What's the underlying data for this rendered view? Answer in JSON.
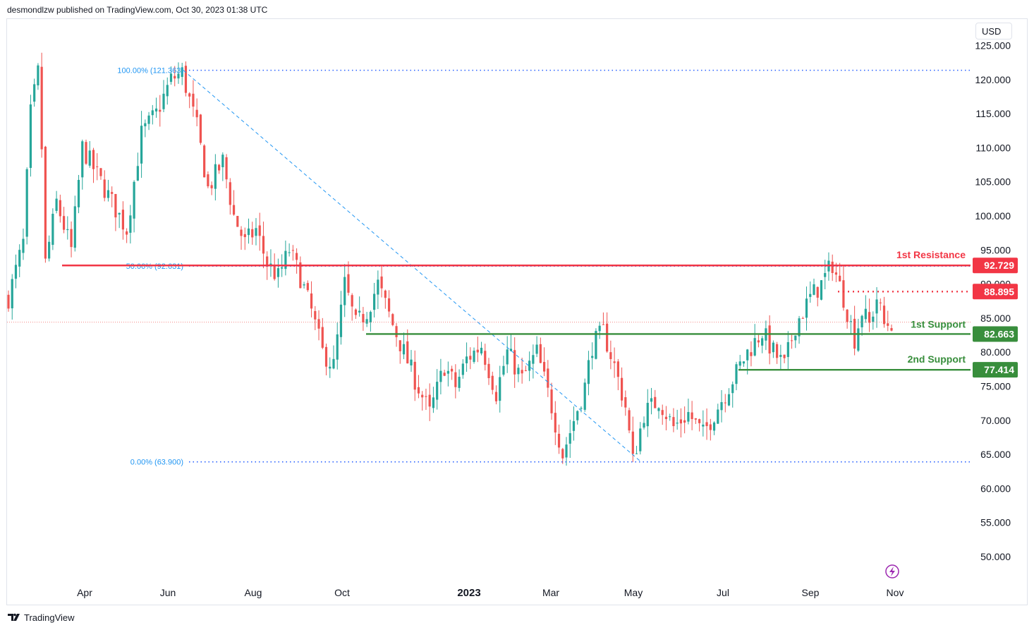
{
  "header": {
    "author_line": "desmondlzw published on TradingView.com, Oct 30, 2023 01:38 UTC"
  },
  "footer": {
    "brand": "TradingView"
  },
  "price_axis": {
    "currency": "USD"
  },
  "colors": {
    "up": "#26a69a",
    "down": "#ef5350",
    "resistance": "#f23645",
    "support": "#388e3c",
    "fib": "#2962ff",
    "fib_label": "#2196f3",
    "axis_text": "#131722"
  },
  "chart_data": {
    "type": "candlestick",
    "y_ticks": [
      "125.000",
      "120.000",
      "115.000",
      "110.000",
      "105.000",
      "100.000",
      "95.000",
      "90.000",
      "85.000",
      "80.000",
      "75.000",
      "70.000",
      "65.000",
      "60.000",
      "55.000",
      "50.000"
    ],
    "x_ticks": [
      "Apr",
      "Jun",
      "Aug",
      "Oct",
      "2023",
      "Mar",
      "May",
      "Jul",
      "Sep",
      "Nov"
    ],
    "ylim": [
      46.5,
      126.5
    ],
    "fib_levels": [
      {
        "label": "100.00% (121.363)",
        "value": 121.363
      },
      {
        "label": "50.00% (92.631)",
        "value": 92.631
      },
      {
        "label": "0.00% (63.900)",
        "value": 63.9
      }
    ],
    "levels": [
      {
        "name": "1st Resistance",
        "value": 92.729,
        "label": "92.729",
        "kind": "resistance"
      },
      {
        "name": "",
        "value": 88.895,
        "label": "88.895",
        "kind": "resistance-dotted"
      },
      {
        "name": "1st Support",
        "value": 82.663,
        "label": "82.663",
        "kind": "support"
      },
      {
        "name": "2nd Support",
        "value": 77.414,
        "label": "77.414",
        "kind": "support"
      }
    ],
    "last_price": 84.4,
    "trend": [
      {
        "t": 0,
        "v": 88
      },
      {
        "t": 2,
        "v": 92
      },
      {
        "t": 4,
        "v": 96
      },
      {
        "t": 6,
        "v": 115
      },
      {
        "t": 8,
        "v": 121
      },
      {
        "t": 9,
        "v": 110
      },
      {
        "t": 10,
        "v": 93
      },
      {
        "t": 13,
        "v": 102
      },
      {
        "t": 17,
        "v": 95
      },
      {
        "t": 20,
        "v": 110
      },
      {
        "t": 26,
        "v": 104
      },
      {
        "t": 32,
        "v": 98
      },
      {
        "t": 36,
        "v": 112
      },
      {
        "t": 40,
        "v": 115
      },
      {
        "t": 44,
        "v": 120
      },
      {
        "t": 47,
        "v": 121
      },
      {
        "t": 51,
        "v": 113
      },
      {
        "t": 54,
        "v": 104
      },
      {
        "t": 58,
        "v": 108
      },
      {
        "t": 61,
        "v": 100
      },
      {
        "t": 64,
        "v": 96
      },
      {
        "t": 67,
        "v": 98
      },
      {
        "t": 70,
        "v": 93
      },
      {
        "t": 73,
        "v": 91
      },
      {
        "t": 76,
        "v": 95
      },
      {
        "t": 79,
        "v": 91
      },
      {
        "t": 82,
        "v": 86
      },
      {
        "t": 85,
        "v": 80
      },
      {
        "t": 88,
        "v": 78
      },
      {
        "t": 91,
        "v": 90
      },
      {
        "t": 94,
        "v": 84
      },
      {
        "t": 97,
        "v": 86
      },
      {
        "t": 100,
        "v": 90
      },
      {
        "t": 104,
        "v": 84
      },
      {
        "t": 107,
        "v": 80
      },
      {
        "t": 110,
        "v": 76
      },
      {
        "t": 114,
        "v": 71
      },
      {
        "t": 118,
        "v": 78
      },
      {
        "t": 121,
        "v": 75
      },
      {
        "t": 124,
        "v": 79
      },
      {
        "t": 128,
        "v": 81
      },
      {
        "t": 132,
        "v": 74
      },
      {
        "t": 135,
        "v": 80
      },
      {
        "t": 139,
        "v": 76
      },
      {
        "t": 143,
        "v": 80
      },
      {
        "t": 147,
        "v": 72
      },
      {
        "t": 150,
        "v": 65
      },
      {
        "t": 153,
        "v": 70
      },
      {
        "t": 156,
        "v": 75
      },
      {
        "t": 158,
        "v": 81
      },
      {
        "t": 161,
        "v": 83
      },
      {
        "t": 164,
        "v": 78
      },
      {
        "t": 167,
        "v": 72
      },
      {
        "t": 169,
        "v": 64
      },
      {
        "t": 172,
        "v": 71
      },
      {
        "t": 176,
        "v": 73
      },
      {
        "t": 180,
        "v": 69
      },
      {
        "t": 184,
        "v": 71
      },
      {
        "t": 188,
        "v": 68
      },
      {
        "t": 192,
        "v": 72
      },
      {
        "t": 196,
        "v": 76
      },
      {
        "t": 200,
        "v": 80
      },
      {
        "t": 204,
        "v": 83
      },
      {
        "t": 207,
        "v": 80
      },
      {
        "t": 210,
        "v": 78
      },
      {
        "t": 213,
        "v": 84
      },
      {
        "t": 217,
        "v": 88
      },
      {
        "t": 220,
        "v": 90
      },
      {
        "t": 223,
        "v": 93
      },
      {
        "t": 226,
        "v": 88
      },
      {
        "t": 229,
        "v": 82
      },
      {
        "t": 231,
        "v": 86
      },
      {
        "t": 233,
        "v": 84
      },
      {
        "t": 235,
        "v": 88
      },
      {
        "t": 237,
        "v": 84
      },
      {
        "t": 239,
        "v": 84.4
      }
    ]
  }
}
